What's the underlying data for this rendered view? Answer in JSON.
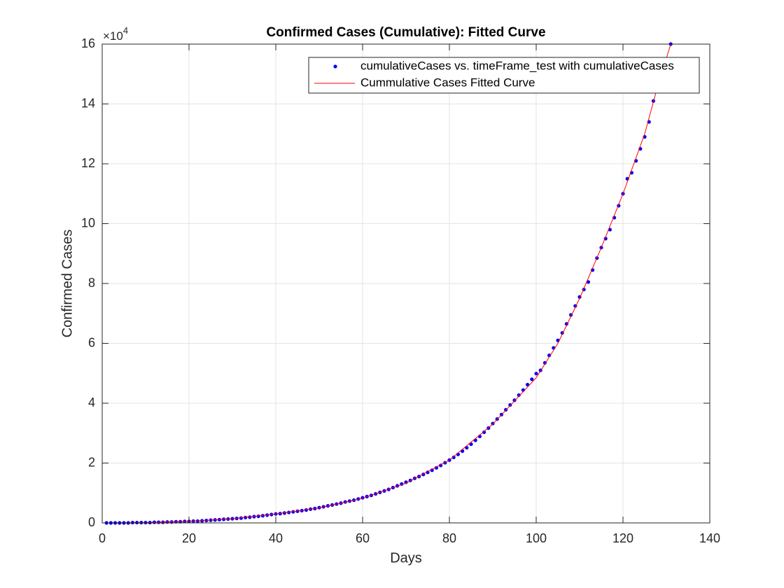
{
  "chart_data": {
    "type": "scatter",
    "title": "Confirmed Cases (Cumulative): Fitted Curve",
    "x_label": "Days",
    "y_label": "Confirmed Cases",
    "y_exponent_base": "×10",
    "y_exponent_power": "4",
    "xlim": [
      0,
      140
    ],
    "xticks": [
      0,
      20,
      40,
      60,
      80,
      100,
      120,
      140
    ],
    "ylim": [
      0,
      16
    ],
    "yticks": [
      0,
      2,
      4,
      6,
      8,
      10,
      12,
      14,
      16
    ],
    "grid": true,
    "legend": "top-right",
    "series": [
      {
        "name": "cumulativeCases vs. timeFrame_test with cumulativeCases",
        "color": "#0000ff",
        "mode": "markers",
        "x": [
          1,
          2,
          3,
          4,
          5,
          6,
          7,
          8,
          9,
          10,
          11,
          12,
          13,
          14,
          15,
          16,
          17,
          18,
          19,
          20,
          21,
          22,
          23,
          24,
          25,
          26,
          27,
          28,
          29,
          30,
          31,
          32,
          33,
          34,
          35,
          36,
          37,
          38,
          39,
          40,
          41,
          42,
          43,
          44,
          45,
          46,
          47,
          48,
          49,
          50,
          51,
          52,
          53,
          54,
          55,
          56,
          57,
          58,
          59,
          60,
          61,
          62,
          63,
          64,
          65,
          66,
          67,
          68,
          69,
          70,
          71,
          72,
          73,
          74,
          75,
          76,
          77,
          78,
          79,
          80,
          81,
          82,
          83,
          84,
          85,
          86,
          87,
          88,
          89,
          90,
          91,
          92,
          93,
          94,
          95,
          96,
          97,
          98,
          99,
          100,
          101,
          102,
          103,
          104,
          105,
          106,
          107,
          108,
          109,
          110,
          111,
          112,
          113,
          114,
          115,
          116,
          117,
          118,
          119,
          120,
          121,
          122,
          123,
          124,
          125,
          126,
          127,
          131
        ],
        "values": [
          0,
          0,
          0,
          0,
          0,
          0,
          0.01,
          0.01,
          0.01,
          0.01,
          0.01,
          0.02,
          0.02,
          0.02,
          0.03,
          0.03,
          0.04,
          0.04,
          0.05,
          0.05,
          0.06,
          0.06,
          0.07,
          0.08,
          0.09,
          0.1,
          0.11,
          0.12,
          0.13,
          0.14,
          0.15,
          0.16,
          0.18,
          0.19,
          0.21,
          0.22,
          0.24,
          0.26,
          0.28,
          0.3,
          0.31,
          0.33,
          0.35,
          0.37,
          0.39,
          0.41,
          0.43,
          0.46,
          0.48,
          0.51,
          0.54,
          0.57,
          0.6,
          0.63,
          0.66,
          0.7,
          0.73,
          0.76,
          0.8,
          0.84,
          0.88,
          0.92,
          0.97,
          1.02,
          1.07,
          1.12,
          1.18,
          1.24,
          1.3,
          1.36,
          1.42,
          1.49,
          1.55,
          1.62,
          1.69,
          1.76,
          1.84,
          1.92,
          2.01,
          2.1,
          2.19,
          2.29,
          2.4,
          2.51,
          2.63,
          2.76,
          2.89,
          3.03,
          3.17,
          3.32,
          3.47,
          3.62,
          3.78,
          3.94,
          4.1,
          4.27,
          4.44,
          4.62,
          4.8,
          4.99,
          5.1,
          5.35,
          5.6,
          5.85,
          6.1,
          6.35,
          6.65,
          6.95,
          7.25,
          7.55,
          7.8,
          8.05,
          8.45,
          8.85,
          9.2,
          9.5,
          9.8,
          10.2,
          10.6,
          11.0,
          11.5,
          11.7,
          12.1,
          12.5,
          12.9,
          13.4,
          14.1,
          16.0
        ]
      },
      {
        "name": "Cummulative Cases Fitted Curve",
        "color": "#ff0000",
        "mode": "line",
        "x": [
          1,
          10,
          20,
          30,
          40,
          50,
          60,
          70,
          80,
          90,
          100,
          105,
          110,
          115,
          120,
          125,
          128,
          131
        ],
        "values": [
          0,
          0.01,
          0.05,
          0.14,
          0.3,
          0.5,
          0.82,
          1.33,
          2.1,
          3.3,
          4.85,
          6.0,
          7.5,
          9.2,
          11.0,
          13.0,
          14.6,
          16.0
        ]
      }
    ]
  }
}
